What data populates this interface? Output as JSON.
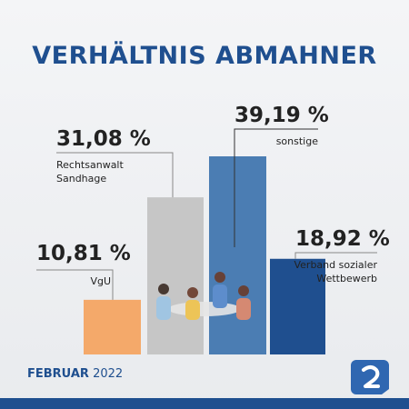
{
  "chart_data": {
    "type": "bar",
    "title": "VERHÄLTNIS ABMAHNER",
    "categories": [
      "VgU",
      "Rechtsanwalt Sandhage",
      "sonstige",
      "Verband sozialer Wettbewerb"
    ],
    "values": [
      10.81,
      31.08,
      39.19,
      18.92
    ],
    "value_labels": [
      "10,81 %",
      "31,08 %",
      "39,19 %",
      "18,92 %"
    ],
    "colors": [
      "#f4a96a",
      "#c6c6c6",
      "#4b7db3",
      "#1f4f8f"
    ]
  },
  "footer": {
    "month": "FEBRUAR",
    "year": "2022"
  }
}
